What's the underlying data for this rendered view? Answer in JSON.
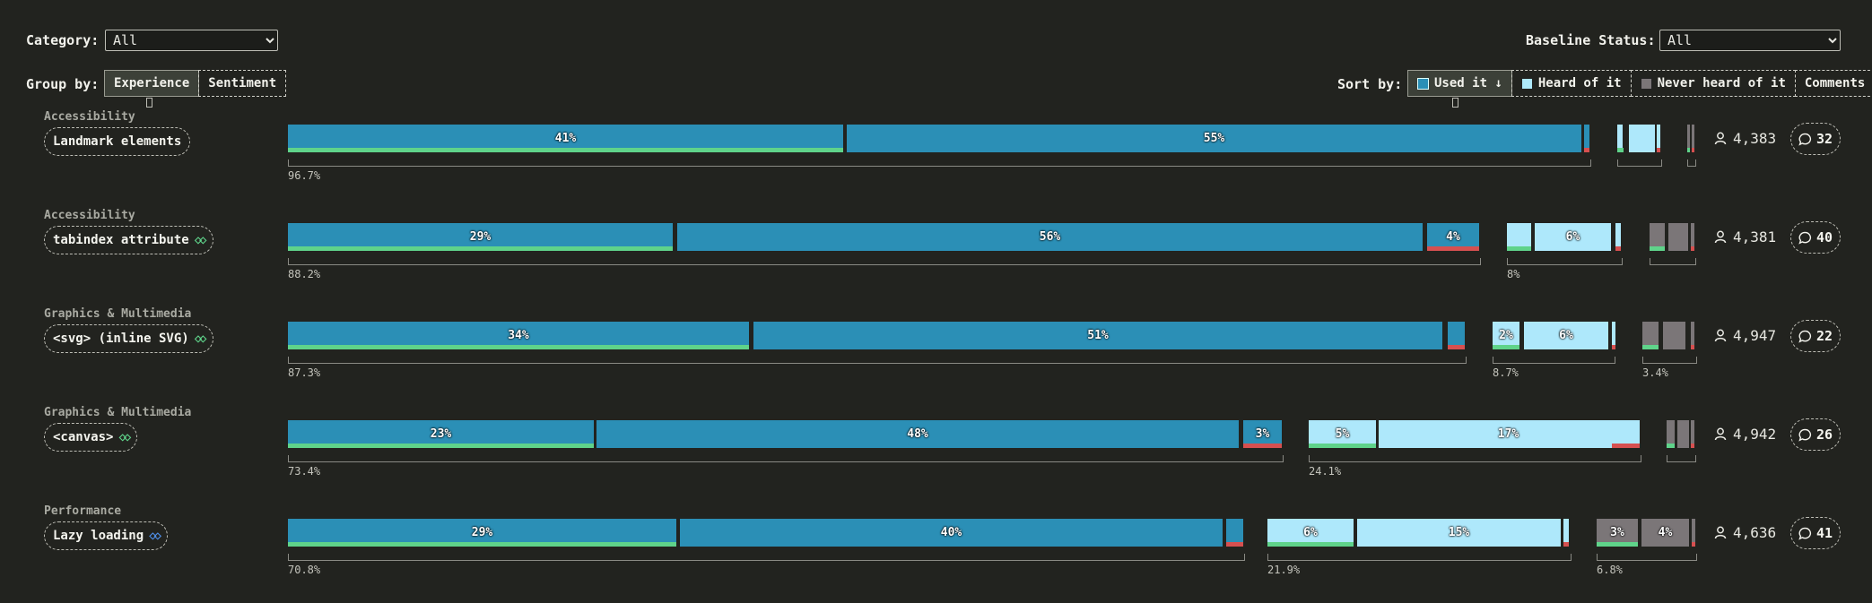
{
  "filters": {
    "category_label": "Category:",
    "category_value": "All",
    "baseline_label": "Baseline Status:",
    "baseline_value": "All"
  },
  "group_by": {
    "label": "Group by:",
    "options": [
      "Experience",
      "Sentiment"
    ],
    "active": "Experience"
  },
  "sort_by": {
    "label": "Sort by:",
    "options": [
      "Used it ↓",
      "Heard of it",
      "Never heard of it",
      "Comments"
    ],
    "active": "Used it ↓"
  },
  "colors": {
    "used": "#2b8fb6",
    "heard": "#aee8fb",
    "never": "#7b7678",
    "positive": "#5fd38a",
    "negative": "#d65050"
  },
  "rows": [
    {
      "category": "Accessibility",
      "feature": "Landmark elements",
      "baseline_icon": "",
      "used": {
        "label": "96.7%",
        "segments": [
          "41%",
          "55%",
          ""
        ]
      },
      "heard": {
        "label": "",
        "segments": [
          "",
          "",
          ""
        ]
      },
      "never": {
        "label": "",
        "segments": [
          "",
          ""
        ]
      },
      "users": "4,383",
      "comments": "32"
    },
    {
      "category": "Accessibility",
      "feature": "tabindex attribute",
      "baseline_icon": "baseline-widely-available-icon",
      "used": {
        "label": "88.2%",
        "segments": [
          "29%",
          "56%",
          "4%"
        ]
      },
      "heard": {
        "label": "8%",
        "segments": [
          "",
          "6%",
          ""
        ]
      },
      "never": {
        "label": "",
        "segments": [
          "",
          ""
        ]
      },
      "users": "4,381",
      "comments": "40"
    },
    {
      "category": "Graphics & Multimedia",
      "feature": "<svg> (inline SVG)",
      "baseline_icon": "baseline-widely-available-icon",
      "used": {
        "label": "87.3%",
        "segments": [
          "34%",
          "51%",
          ""
        ]
      },
      "heard": {
        "label": "8.7%",
        "segments": [
          "2%",
          "6%",
          ""
        ]
      },
      "never": {
        "label": "3.4%",
        "segments": [
          "",
          ""
        ]
      },
      "users": "4,947",
      "comments": "22"
    },
    {
      "category": "Graphics & Multimedia",
      "feature": "<canvas>",
      "baseline_icon": "baseline-widely-available-icon",
      "used": {
        "label": "73.4%",
        "segments": [
          "23%",
          "48%",
          "3%"
        ]
      },
      "heard": {
        "label": "24.1%",
        "segments": [
          "5%",
          "17%",
          ""
        ]
      },
      "never": {
        "label": "",
        "segments": [
          "",
          ""
        ]
      },
      "users": "4,942",
      "comments": "26"
    },
    {
      "category": "Performance",
      "feature": "Lazy loading",
      "baseline_icon": "baseline-newly-available-icon",
      "used": {
        "label": "70.8%",
        "segments": [
          "29%",
          "40%",
          ""
        ]
      },
      "heard": {
        "label": "21.9%",
        "segments": [
          "6%",
          "15%",
          ""
        ]
      },
      "never": {
        "label": "6.8%",
        "segments": [
          "3%",
          "4%"
        ]
      },
      "users": "4,636",
      "comments": "41"
    }
  ]
}
